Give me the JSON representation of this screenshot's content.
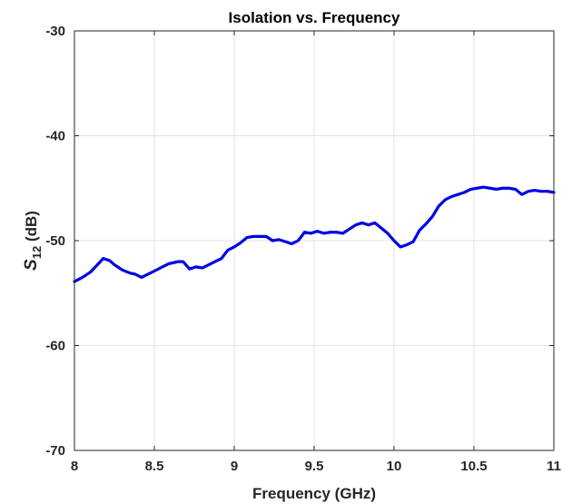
{
  "chart_data": {
    "type": "line",
    "title": "Isolation vs. Frequency",
    "xlabel": "Frequency (GHz)",
    "ylabel": {
      "symbol": "S",
      "subscript": "12",
      "unit": " (dB)"
    },
    "xlim": [
      8,
      11
    ],
    "ylim": [
      -70,
      -30
    ],
    "xticks": [
      8,
      8.5,
      9,
      9.5,
      10,
      10.5,
      11
    ],
    "xtick_labels": [
      "8",
      "8.5",
      "9",
      "9.5",
      "10",
      "10.5",
      "11"
    ],
    "yticks": [
      -70,
      -60,
      -50,
      -40,
      -30
    ],
    "ytick_labels": [
      "-70",
      "-60",
      "-50",
      "-40",
      "-30"
    ],
    "grid": true,
    "series": [
      {
        "color": "#0000e6",
        "x": [
          8.0,
          8.05,
          8.1,
          8.15,
          8.18,
          8.22,
          8.25,
          8.3,
          8.35,
          8.38,
          8.42,
          8.46,
          8.5,
          8.55,
          8.59,
          8.62,
          8.65,
          8.68,
          8.72,
          8.76,
          8.8,
          8.84,
          8.88,
          8.92,
          8.96,
          9.0,
          9.04,
          9.08,
          9.12,
          9.16,
          9.2,
          9.24,
          9.28,
          9.32,
          9.36,
          9.4,
          9.44,
          9.48,
          9.52,
          9.56,
          9.6,
          9.64,
          9.68,
          9.72,
          9.76,
          9.8,
          9.84,
          9.88,
          9.92,
          9.96,
          10.0,
          10.04,
          10.08,
          10.12,
          10.16,
          10.2,
          10.24,
          10.28,
          10.32,
          10.36,
          10.4,
          10.44,
          10.48,
          10.52,
          10.56,
          10.6,
          10.64,
          10.68,
          10.72,
          10.76,
          10.8,
          10.84,
          10.88,
          10.92,
          10.96,
          11.0
        ],
        "y": [
          -53.9,
          -53.5,
          -53.0,
          -52.2,
          -51.7,
          -51.9,
          -52.3,
          -52.8,
          -53.1,
          -53.2,
          -53.5,
          -53.2,
          -52.9,
          -52.5,
          -52.2,
          -52.1,
          -52.0,
          -52.0,
          -52.7,
          -52.5,
          -52.6,
          -52.3,
          -52.0,
          -51.7,
          -50.9,
          -50.6,
          -50.2,
          -49.7,
          -49.6,
          -49.6,
          -49.6,
          -50.0,
          -49.9,
          -50.1,
          -50.3,
          -50.0,
          -49.2,
          -49.3,
          -49.1,
          -49.3,
          -49.2,
          -49.2,
          -49.3,
          -48.9,
          -48.5,
          -48.3,
          -48.5,
          -48.3,
          -48.8,
          -49.3,
          -50.0,
          -50.6,
          -50.4,
          -50.1,
          -49.0,
          -48.4,
          -47.7,
          -46.7,
          -46.1,
          -45.8,
          -45.6,
          -45.4,
          -45.1,
          -45.0,
          -44.9,
          -45.0,
          -45.1,
          -45.0,
          -45.0,
          -45.1,
          -45.6,
          -45.3,
          -45.2,
          -45.3,
          -45.3,
          -45.4
        ]
      }
    ]
  }
}
